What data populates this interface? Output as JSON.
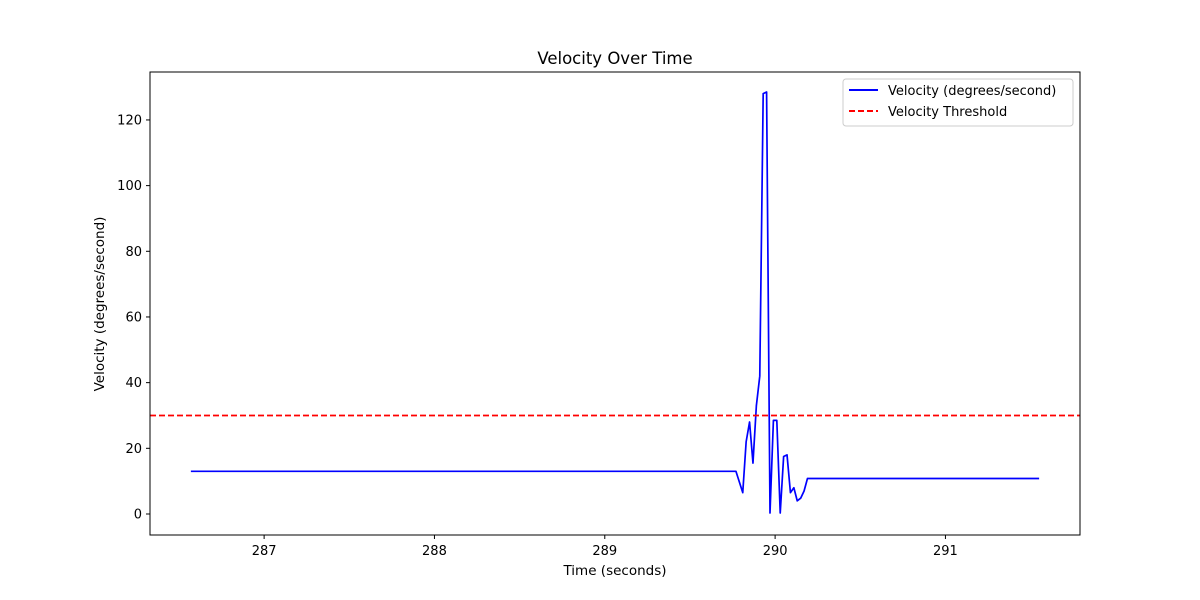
{
  "chart_data": {
    "type": "line",
    "title": "Velocity Over Time",
    "xlabel": "Time (seconds)",
    "ylabel": "Velocity (degrees/second)",
    "xlim": [
      286.33,
      291.79
    ],
    "ylim": [
      -6.4,
      134.6
    ],
    "xticks": [
      287,
      288,
      289,
      290,
      291
    ],
    "yticks": [
      0,
      20,
      40,
      60,
      80,
      100,
      120
    ],
    "grid": false,
    "legend_position": "top-right",
    "series": [
      {
        "name": "Velocity (degrees/second)",
        "color": "#0000ff",
        "style": "solid",
        "x": [
          286.57,
          289.77,
          289.81,
          289.83,
          289.85,
          289.87,
          289.89,
          289.91,
          289.93,
          289.95,
          289.97,
          289.99,
          290.01,
          290.03,
          290.05,
          290.07,
          290.09,
          290.11,
          290.13,
          290.15,
          290.17,
          290.19,
          291.55
        ],
        "y": [
          13.0,
          13.0,
          6.5,
          22.0,
          28.0,
          15.5,
          33.0,
          42.0,
          128.0,
          128.5,
          0.3,
          28.5,
          28.5,
          0.3,
          17.5,
          18.0,
          6.5,
          8.0,
          4.0,
          4.8,
          7.0,
          10.8,
          10.8
        ]
      },
      {
        "name": "Velocity Threshold",
        "color": "#ff0000",
        "style": "dashed",
        "constant_y": 30
      }
    ]
  }
}
